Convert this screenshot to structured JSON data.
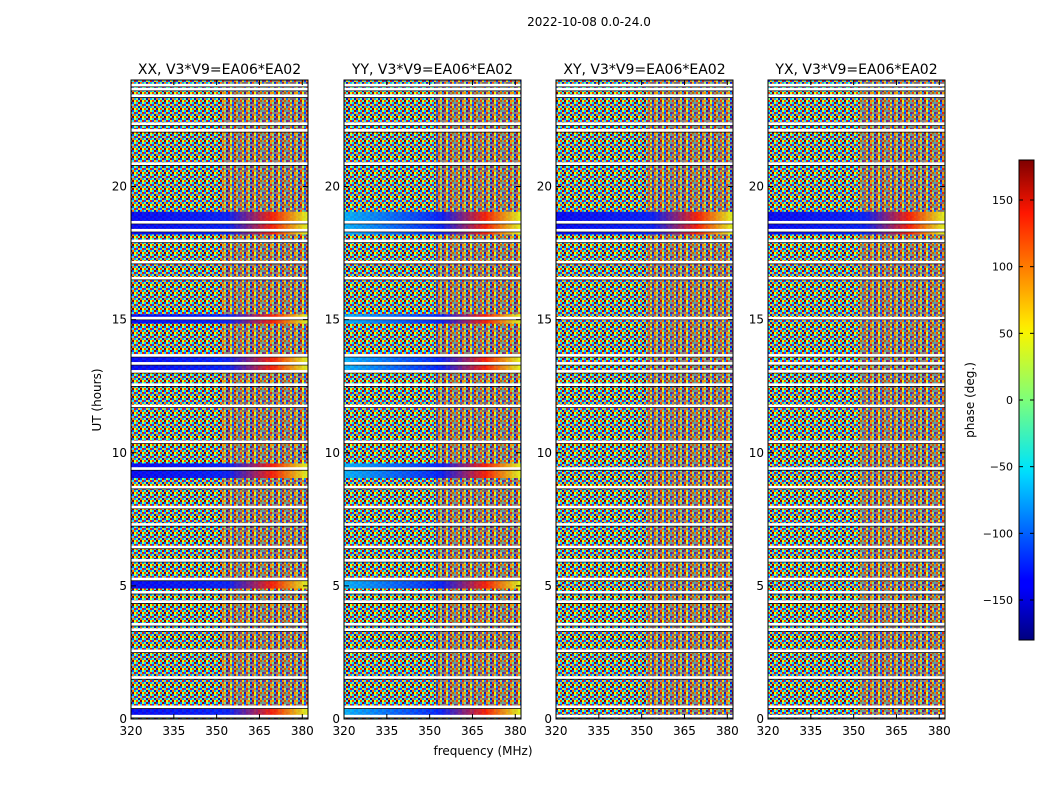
{
  "figure": {
    "suptitle": "2022-10-08 0.0-24.0"
  },
  "chart_data": {
    "type": "heatmap",
    "shared_ylabel": "UT (hours)",
    "shared_xlabel": "frequency (MHz)",
    "xlim": [
      320,
      382
    ],
    "ylim": [
      0,
      24
    ],
    "xticks": [
      320,
      335,
      350,
      365,
      380
    ],
    "yticks": [
      0,
      5,
      10,
      15,
      20
    ],
    "panels": [
      {
        "title": "XX, V3*V9=EA06*EA02",
        "pol": "XX"
      },
      {
        "title": "YY, V3*V9=EA06*EA02",
        "pol": "YY"
      },
      {
        "title": "XY, V3*V9=EA06*EA02",
        "pol": "XY"
      },
      {
        "title": "YX, V3*V9=EA06*EA02",
        "pol": "YX"
      }
    ],
    "colorbar": {
      "label": "phase (deg.)",
      "range": [
        -180,
        180
      ],
      "ticks": [
        150,
        100,
        50,
        0,
        -50,
        -100,
        -150
      ],
      "tick_labels": [
        "150",
        "100",
        "50",
        "0",
        "−50",
        "−100",
        "−150"
      ],
      "colormap": "jet"
    },
    "flagged_rows_ut": [
      0.1,
      0.45,
      1.55,
      2.55,
      3.35,
      3.55,
      4.4,
      4.75,
      5.25,
      5.95,
      6.45,
      7.3,
      7.95,
      8.7,
      9.4,
      10.4,
      11.75,
      12.55,
      13.05,
      13.35,
      13.65,
      15.05,
      16.55,
      17.15,
      17.95,
      18.35,
      18.65,
      20.85,
      22.1,
      22.35,
      23.4,
      23.65,
      23.8
    ],
    "strong_phase_bands_ut": [
      {
        "ut_start": 0.05,
        "ut_end": 0.4,
        "pols": [
          "XX",
          "YY"
        ]
      },
      {
        "ut_start": 4.9,
        "ut_end": 5.3,
        "pols": [
          "XX",
          "YY"
        ]
      },
      {
        "ut_start": 9.05,
        "ut_end": 9.6,
        "pols": [
          "XX",
          "YY"
        ]
      },
      {
        "ut_start": 13.1,
        "ut_end": 13.7,
        "pols": [
          "XX",
          "YY"
        ]
      },
      {
        "ut_start": 14.85,
        "ut_end": 15.2,
        "pols": [
          "XX",
          "YY"
        ]
      },
      {
        "ut_start": 18.2,
        "ut_end": 19.05,
        "pols": [
          "XX",
          "YY",
          "XY",
          "YX"
        ]
      }
    ]
  }
}
